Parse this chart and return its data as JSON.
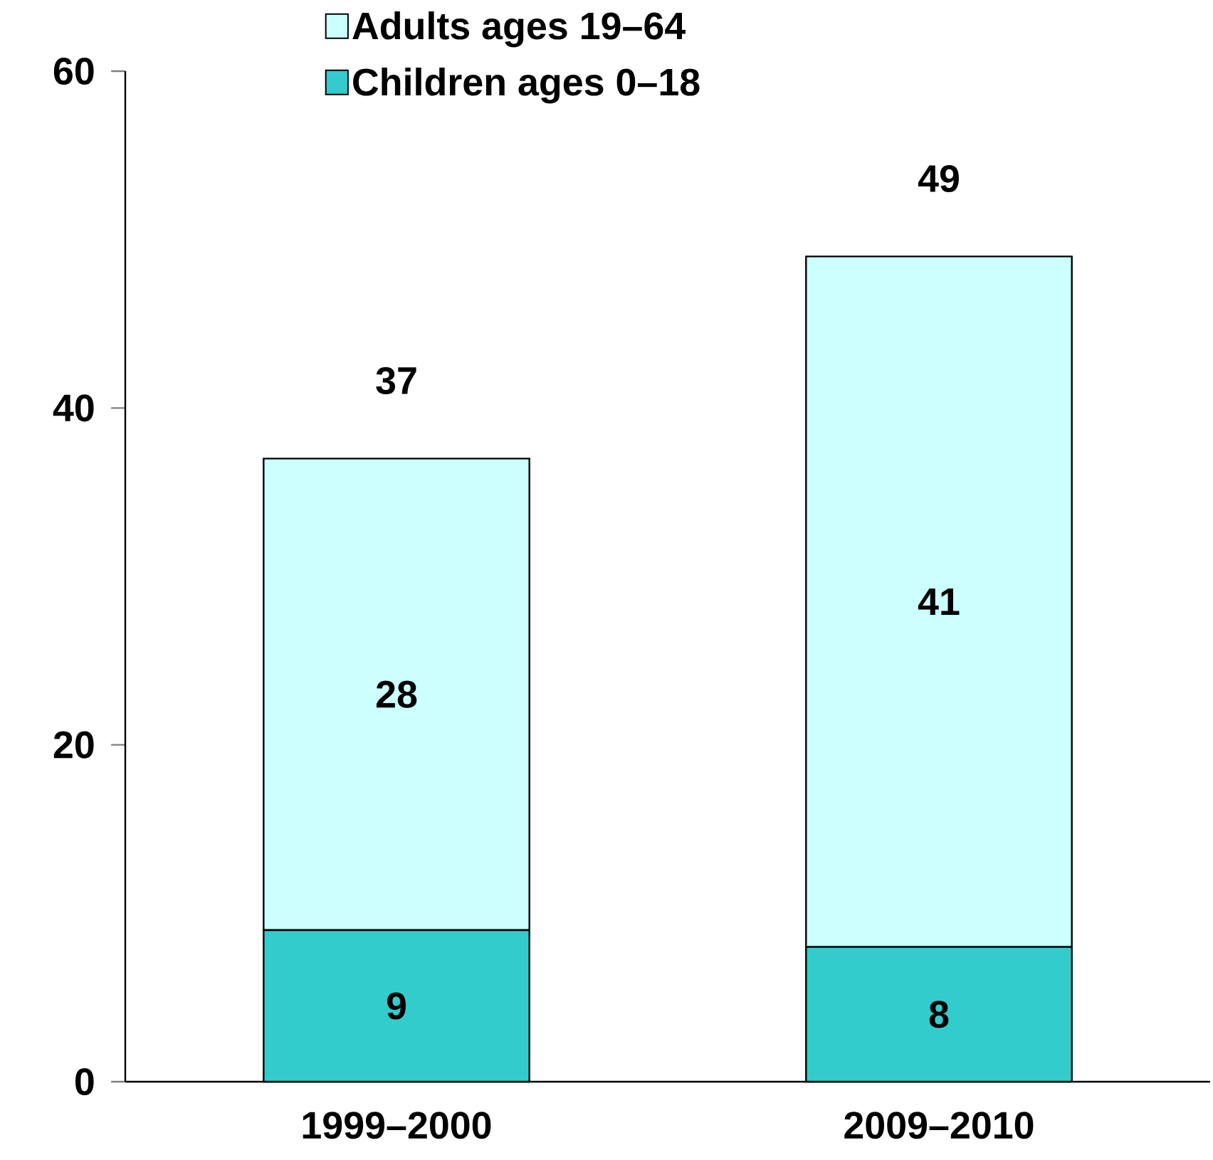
{
  "chart_data": {
    "type": "bar",
    "stacked": true,
    "categories": [
      "1999–2000",
      "2009–2010"
    ],
    "series": [
      {
        "name": "Children ages 0–18",
        "color": "#33cccc",
        "values": [
          9,
          8
        ]
      },
      {
        "name": "Adults ages 19–64",
        "color": "#ccffff",
        "values": [
          28,
          41
        ]
      }
    ],
    "totals": [
      "37",
      "49"
    ],
    "data_labels": true,
    "legend": "top",
    "ylim": [
      0,
      60
    ],
    "yticks": [
      0,
      20,
      40,
      60
    ]
  }
}
